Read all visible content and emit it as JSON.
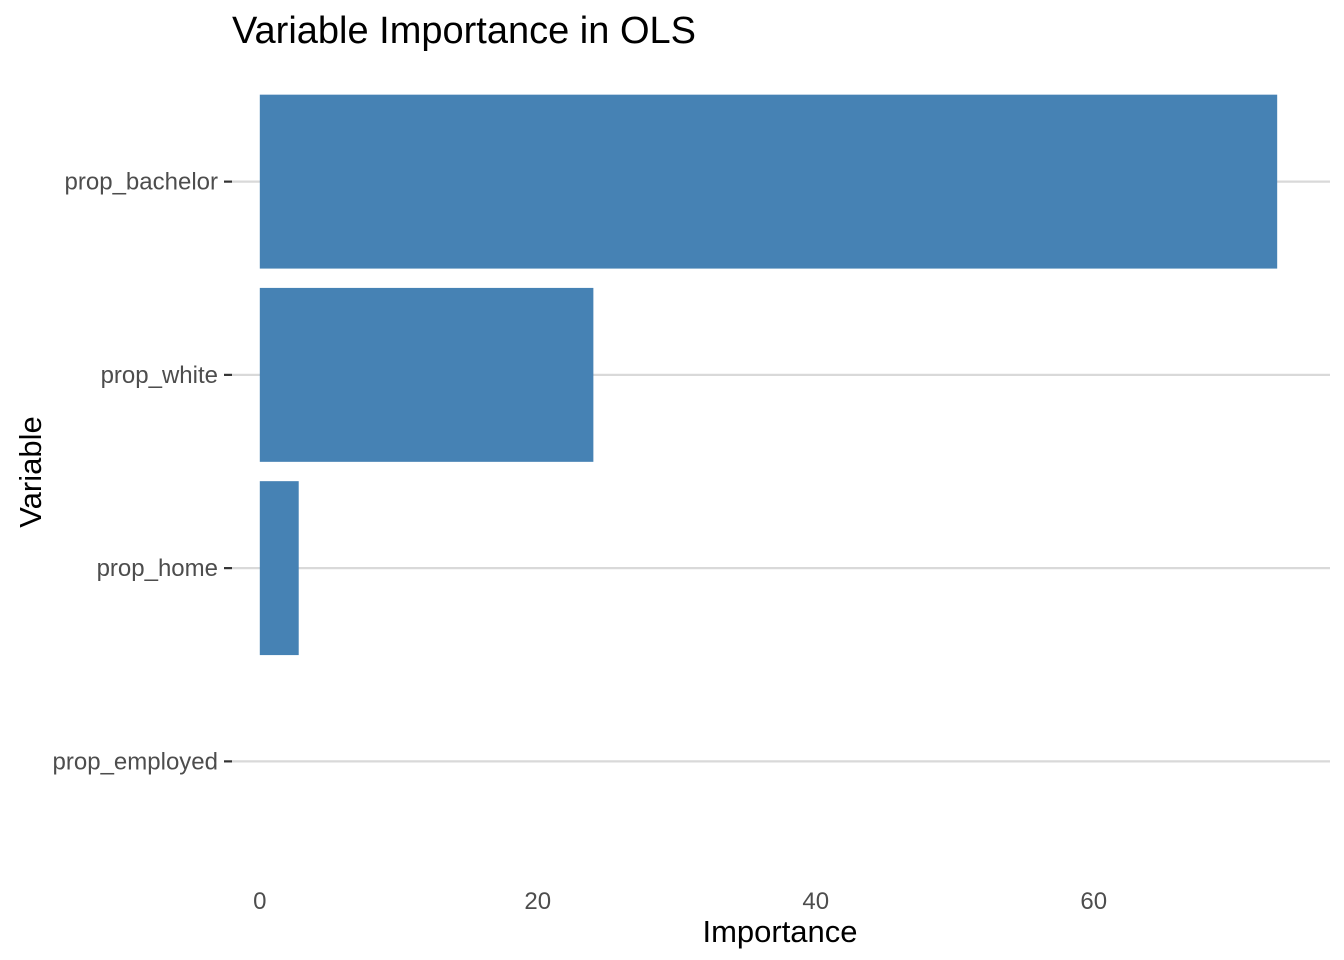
{
  "chart_data": {
    "type": "bar",
    "orientation": "horizontal",
    "title": "Variable Importance in OLS",
    "xlabel": "Importance",
    "ylabel": "Variable",
    "categories": [
      "prop_bachelor",
      "prop_white",
      "prop_home",
      "prop_employed"
    ],
    "values": [
      73.2,
      24.0,
      2.8,
      0
    ],
    "xlim": [
      -2.0,
      77.0
    ],
    "xticks": [
      0,
      20,
      40,
      60
    ],
    "grid": "horizontal-major",
    "legend": "none",
    "bar_color": "#4682b4"
  }
}
